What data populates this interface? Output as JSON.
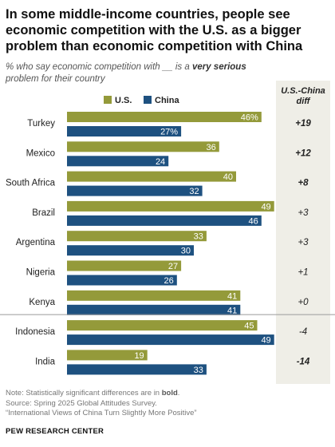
{
  "title": "In some middle-income countries, people see economic competition with the U.S. as a bigger problem than economic competition with China",
  "subtitle": {
    "prefix": "% who say economic competition with __ is a ",
    "emphasis": "very serious",
    "suffix": " problem for their country"
  },
  "diff_header": "U.S.-China diff",
  "note": {
    "prefix": "Note: Statistically significant differences are in ",
    "emphasis": "bold",
    "suffix": ".",
    "source": "Source: Spring 2025 Global Attitudes Survey.",
    "report": "“International Views of China Turn Slightly More Positive”"
  },
  "brand": "PEW RESEARCH CENTER",
  "colors": {
    "us": "#949a3a",
    "china": "#1e5180",
    "diff_bg": "#efeee7",
    "divider": "#9a9a9a"
  },
  "chart_data": {
    "type": "bar",
    "orientation": "horizontal",
    "categories": [
      "Turkey",
      "Mexico",
      "South Africa",
      "Brazil",
      "Argentina",
      "Nigeria",
      "Kenya",
      "Indonesia",
      "India"
    ],
    "series": [
      {
        "name": "U.S.",
        "values": [
          46,
          36,
          40,
          49,
          33,
          27,
          41,
          45,
          19
        ],
        "labels": [
          "46%",
          "36",
          "40",
          "49",
          "33",
          "27",
          "41",
          "45",
          "19"
        ]
      },
      {
        "name": "China",
        "values": [
          27,
          24,
          32,
          46,
          30,
          26,
          41,
          49,
          33
        ],
        "labels": [
          "27%",
          "24",
          "32",
          "46",
          "30",
          "26",
          "41",
          "49",
          "33"
        ]
      }
    ],
    "diff": {
      "labels": [
        "+19",
        "+12",
        "+8",
        "+3",
        "+3",
        "+1",
        "+0",
        "-4",
        "-14"
      ],
      "bold": [
        true,
        true,
        true,
        false,
        false,
        false,
        false,
        false,
        true
      ]
    },
    "xlim": [
      0,
      50
    ],
    "legend": "top",
    "grid": false
  }
}
